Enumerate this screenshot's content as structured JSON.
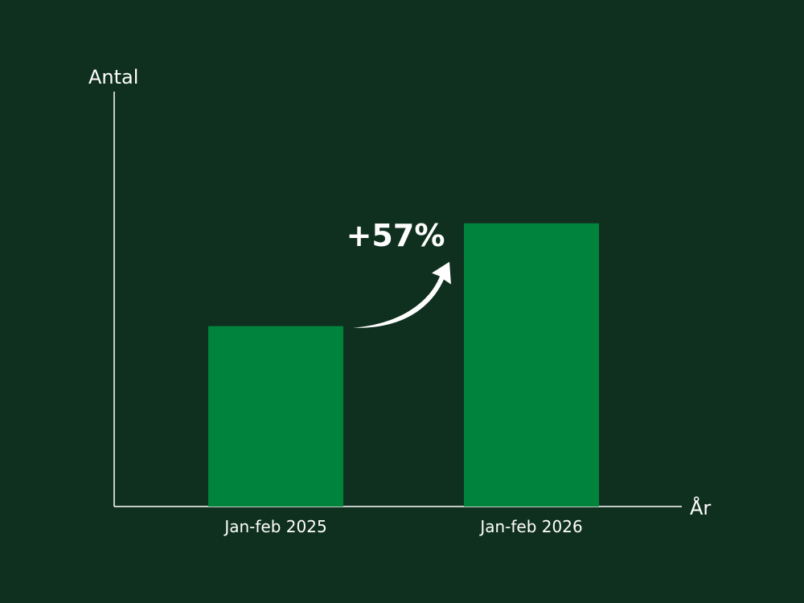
{
  "chart_data": {
    "type": "bar",
    "categories": [
      "Jan-feb 2025",
      "Jan-feb 2026"
    ],
    "values": [
      100,
      157
    ],
    "xlabel": "År",
    "ylabel": "Antal",
    "ylim": [
      0,
      230
    ],
    "grid": false,
    "bar_color": "#00843d",
    "background_color": "#10301f",
    "annotation": "+57%"
  }
}
